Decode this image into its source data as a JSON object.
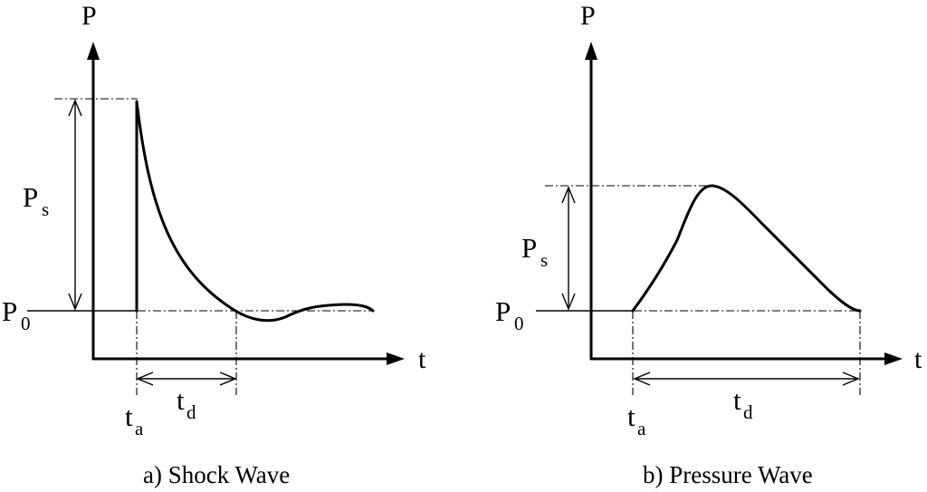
{
  "panels": {
    "shock": {
      "y_axis_label": "P",
      "x_axis_label": "t",
      "peak_label_main": "P",
      "peak_label_sub": "s",
      "base_label_main": "P",
      "base_label_sub": "0",
      "arrival_label_main": "t",
      "arrival_label_sub": "a",
      "duration_label_main": "t",
      "duration_label_sub": "d",
      "caption": "a) Shock Wave"
    },
    "pressure": {
      "y_axis_label": "P",
      "x_axis_label": "t",
      "peak_label_main": "P",
      "peak_label_sub": "s",
      "base_label_main": "P",
      "base_label_sub": "0",
      "arrival_label_main": "t",
      "arrival_label_sub": "a",
      "duration_label_main": "t",
      "duration_label_sub": "d",
      "caption": "b) Pressure Wave"
    }
  }
}
